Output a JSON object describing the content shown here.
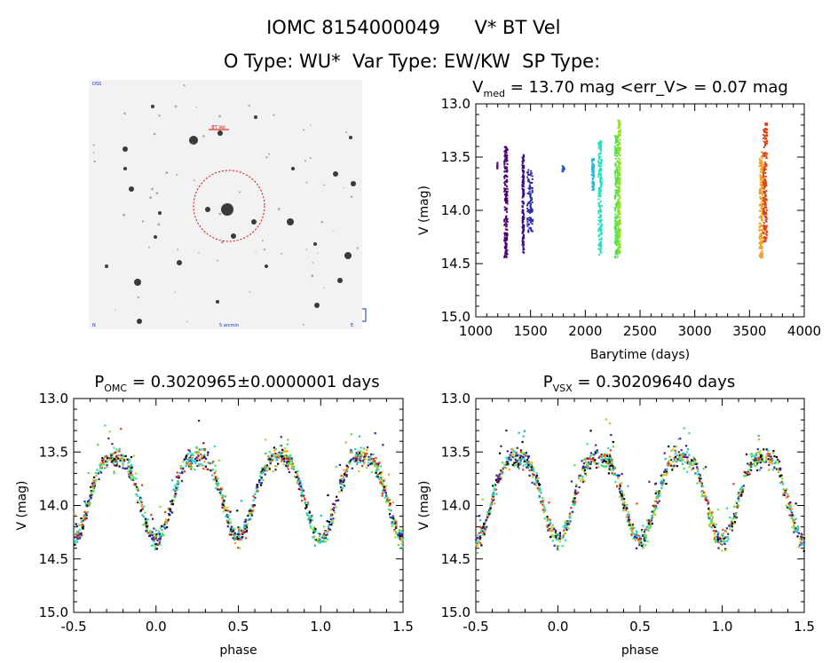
{
  "header": {
    "line1_id": "IOMC 8154000049",
    "line1_name": "V* BT Vel",
    "line2": "O Type: WU*  Var Type: EW/KW  SP Type:"
  },
  "chart_data": [
    {
      "type": "scatter",
      "panel": "timeseries",
      "title_prefix": "V",
      "title_sub": "med",
      "title_rest": " = 13.70 mag <err_V> = 0.07 mag",
      "xlabel": "Barytime (days)",
      "ylabel": "V (mag)",
      "xlim": [
        1000,
        4000
      ],
      "ylim": [
        15.0,
        13.0
      ],
      "xticks": [
        "1000",
        "1500",
        "2000",
        "2500",
        "3000",
        "3500",
        "4000"
      ],
      "yticks": [
        "13.0",
        "13.5",
        "14.0",
        "14.5",
        "15.0"
      ],
      "series": [
        {
          "name": "t1",
          "color": "#5a0a7a",
          "x_range": [
            1195,
            1200
          ],
          "y_range": [
            13.55,
            13.62
          ]
        },
        {
          "name": "t2",
          "color": "#4b0070",
          "x_range": [
            1260,
            1290
          ],
          "y_range": [
            13.4,
            14.45
          ]
        },
        {
          "name": "t3",
          "color": "#3a0a8c",
          "x_range": [
            1425,
            1440
          ],
          "y_range": [
            13.48,
            14.4
          ]
        },
        {
          "name": "t4",
          "color": "#2a2aa8",
          "x_range": [
            1470,
            1520
          ],
          "y_range": [
            13.62,
            14.22
          ]
        },
        {
          "name": "t5",
          "color": "#2050c0",
          "x_range": [
            1790,
            1810
          ],
          "y_range": [
            13.58,
            13.64
          ]
        },
        {
          "name": "t6",
          "color": "#20b8d8",
          "x_range": [
            2060,
            2080
          ],
          "y_range": [
            13.5,
            13.82
          ]
        },
        {
          "name": "t7",
          "color": "#20e0c0",
          "x_range": [
            2120,
            2150
          ],
          "y_range": [
            13.35,
            14.42
          ]
        },
        {
          "name": "t8",
          "color": "#50e050",
          "x_range": [
            2270,
            2300
          ],
          "y_range": [
            13.3,
            14.45
          ]
        },
        {
          "name": "t9",
          "color": "#90e020",
          "x_range": [
            2300,
            2320
          ],
          "y_range": [
            13.15,
            14.4
          ]
        },
        {
          "name": "t10",
          "color": "#f0a020",
          "x_range": [
            3590,
            3620
          ],
          "y_range": [
            13.45,
            14.45
          ]
        },
        {
          "name": "t11",
          "color": "#e04010",
          "x_range": [
            3625,
            3660
          ],
          "y_range": [
            13.18,
            14.3
          ]
        }
      ]
    },
    {
      "type": "scatter",
      "panel": "phase-omc",
      "title_prefix": "P",
      "title_sub": "OMC",
      "title_rest": " = 0.3020965±0.0000001 days",
      "xlabel": "phase",
      "ylabel": "V (mag)",
      "xlim": [
        -0.5,
        1.5
      ],
      "ylim": [
        15.0,
        13.0
      ],
      "xticks": [
        "-0.5",
        "0.0",
        "0.5",
        "1.0",
        "1.5"
      ],
      "yticks": [
        "13.0",
        "13.5",
        "14.0",
        "14.5",
        "15.0"
      ],
      "model": {
        "mean": 13.98,
        "amplitude": 0.36,
        "min_primary": 14.32,
        "min_secondary": 14.3,
        "max_mag": 13.55
      },
      "colors": [
        "#5a0a7a",
        "#2a2aa8",
        "#20b8d8",
        "#20e0c0",
        "#50e050",
        "#90e020",
        "#f0a020",
        "#e04010",
        "#000000"
      ]
    },
    {
      "type": "scatter",
      "panel": "phase-vsx",
      "title_prefix": "P",
      "title_sub": "VSX",
      "title_rest": " = 0.30209640 days",
      "xlabel": "phase",
      "ylabel": "V (mag)",
      "xlim": [
        -0.5,
        1.5
      ],
      "ylim": [
        15.0,
        13.0
      ],
      "xticks": [
        "-0.5",
        "0.0",
        "0.5",
        "1.0",
        "1.5"
      ],
      "yticks": [
        "13.0",
        "13.5",
        "14.0",
        "14.5",
        "15.0"
      ],
      "model": {
        "mean": 13.98,
        "amplitude": 0.36,
        "min_primary": 14.32,
        "min_secondary": 14.34,
        "max_mag": 13.55
      },
      "colors": [
        "#5a0a7a",
        "#2a2aa8",
        "#20b8d8",
        "#20e0c0",
        "#50e050",
        "#90e020",
        "#f0a020",
        "#e04010",
        "#000000"
      ]
    }
  ],
  "finder": {
    "label_tl": "DSS",
    "label_red": "BT Vel",
    "label_bl": "N",
    "label_bc": "5 arcmin",
    "label_br": "E"
  }
}
